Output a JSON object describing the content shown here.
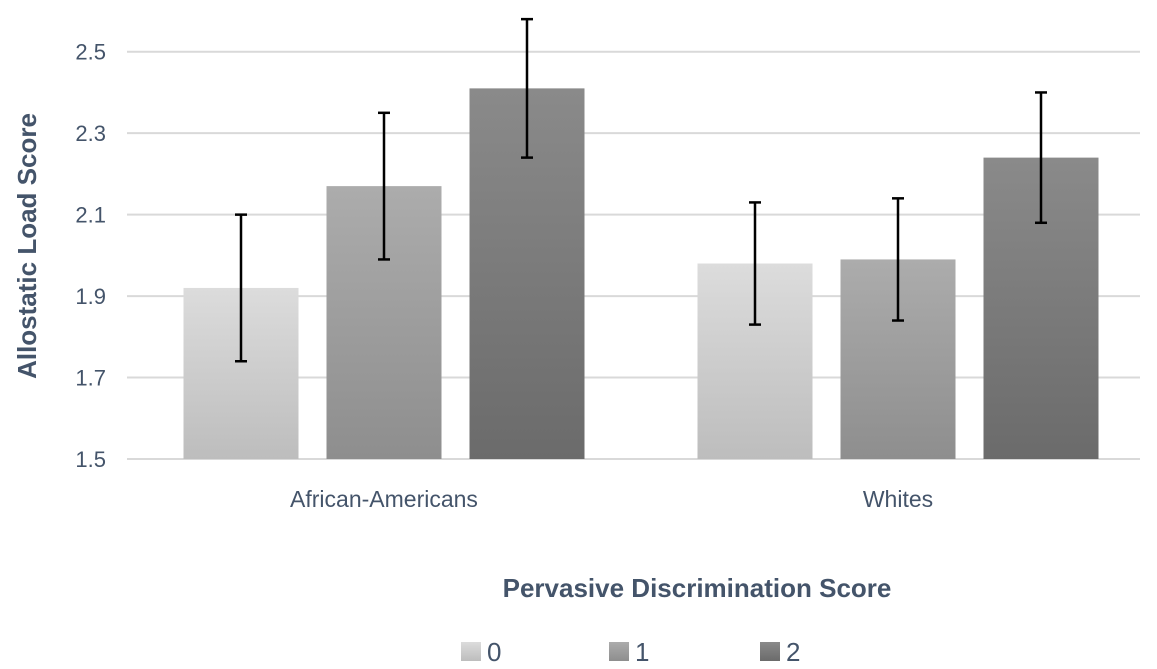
{
  "chart_data": {
    "type": "bar",
    "categories": [
      "African-Americans",
      "Whites"
    ],
    "series": [
      {
        "name": "0",
        "values": [
          1.92,
          1.98
        ],
        "error_low": [
          1.74,
          1.83
        ],
        "error_high": [
          2.1,
          2.13
        ],
        "color_top": "#dcdcdc",
        "color_bottom": "#bdbdbd"
      },
      {
        "name": "1",
        "values": [
          2.17,
          1.99
        ],
        "error_low": [
          1.99,
          1.84
        ],
        "error_high": [
          2.35,
          2.14
        ],
        "color_top": "#acacac",
        "color_bottom": "#8e8e8e"
      },
      {
        "name": "2",
        "values": [
          2.41,
          2.24
        ],
        "error_low": [
          2.24,
          2.08
        ],
        "error_high": [
          2.58,
          2.4
        ],
        "color_top": "#8a8a8a",
        "color_bottom": "#6b6b6b"
      }
    ],
    "yticks": [
      "1.5",
      "1.7",
      "1.9",
      "2.1",
      "2.3",
      "2.5"
    ],
    "ylim": [
      1.5,
      2.6
    ],
    "xlabel": "Pervasive Discrimination Score",
    "ylabel": "Allostatic Load Score",
    "legend_position": "bottom",
    "grid": true,
    "gridline_color": "#d9d9d9",
    "text_color": "#44546a"
  }
}
